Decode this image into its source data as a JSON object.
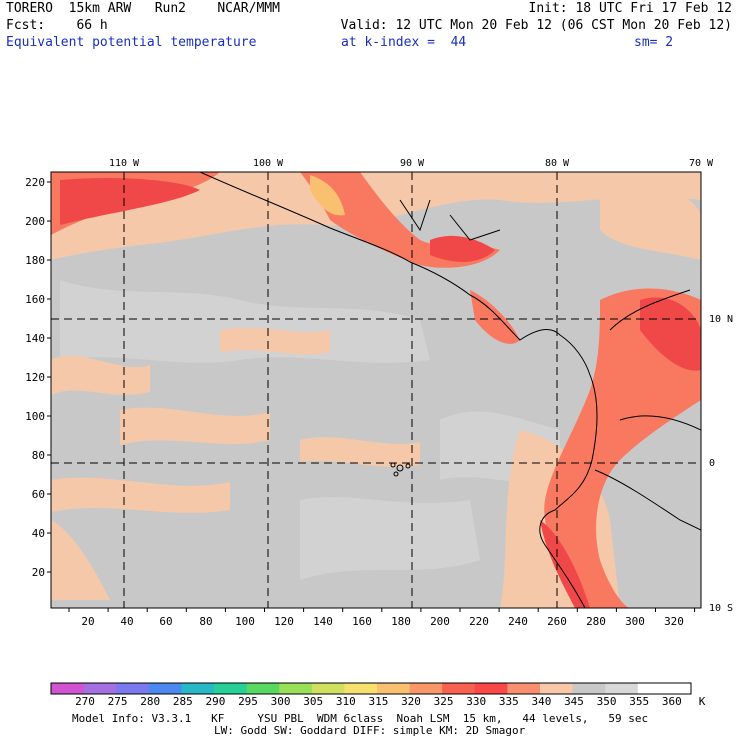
{
  "header": {
    "line1_left": "TORERO  15km ARW   Run2    NCAR/MMM",
    "line1_right": "Init: 18 UTC Fri 17 Feb 12",
    "line2_left": "Fcst:    66 h",
    "line2_right": "Valid: 12 UTC Mon 20 Feb 12 (06 CST Mon 20 Feb 12)",
    "field": "Equivalent potential temperature",
    "level": "at k-index =  44",
    "smoothing": "sm= 2"
  },
  "map": {
    "x_ticks": [
      "20",
      "40",
      "60",
      "80",
      "100",
      "120",
      "140",
      "160",
      "180",
      "200",
      "220",
      "240",
      "260",
      "280",
      "300",
      "320"
    ],
    "y_ticks": [
      "20",
      "40",
      "60",
      "80",
      "100",
      "120",
      "140",
      "160",
      "180",
      "200",
      "220"
    ],
    "lon_labels": [
      "110 W",
      "100 W",
      "90 W",
      "80 W",
      "70 W"
    ],
    "lat_labels": [
      "10 N",
      "0",
      "10 S"
    ]
  },
  "legend": {
    "labels": [
      "270",
      "275",
      "280",
      "285",
      "290",
      "295",
      "300",
      "305",
      "310",
      "315",
      "320",
      "325",
      "330",
      "335",
      "340",
      "345",
      "350",
      "355",
      "360"
    ],
    "unit": "K",
    "colors": [
      "#d054d0",
      "#a470e0",
      "#7c78ee",
      "#4c88f0",
      "#28b8c8",
      "#28d098",
      "#58d860",
      "#98e058",
      "#d0e060",
      "#f8e070",
      "#f8c070",
      "#f89868",
      "#f86050",
      "#f84848",
      "#f89070",
      "#f8c8a8",
      "#c8c8c8",
      "#d8d8d8",
      "#ffffff"
    ]
  },
  "model_info": {
    "line1": "Model Info: V3.3.1   KF     YSU PBL  WDM 6class  Noah LSM  15 km,   44 levels,   59 sec",
    "line2": "LW: Godd SW: Goddard DIFF: simple KM: 2D Smagor"
  }
}
